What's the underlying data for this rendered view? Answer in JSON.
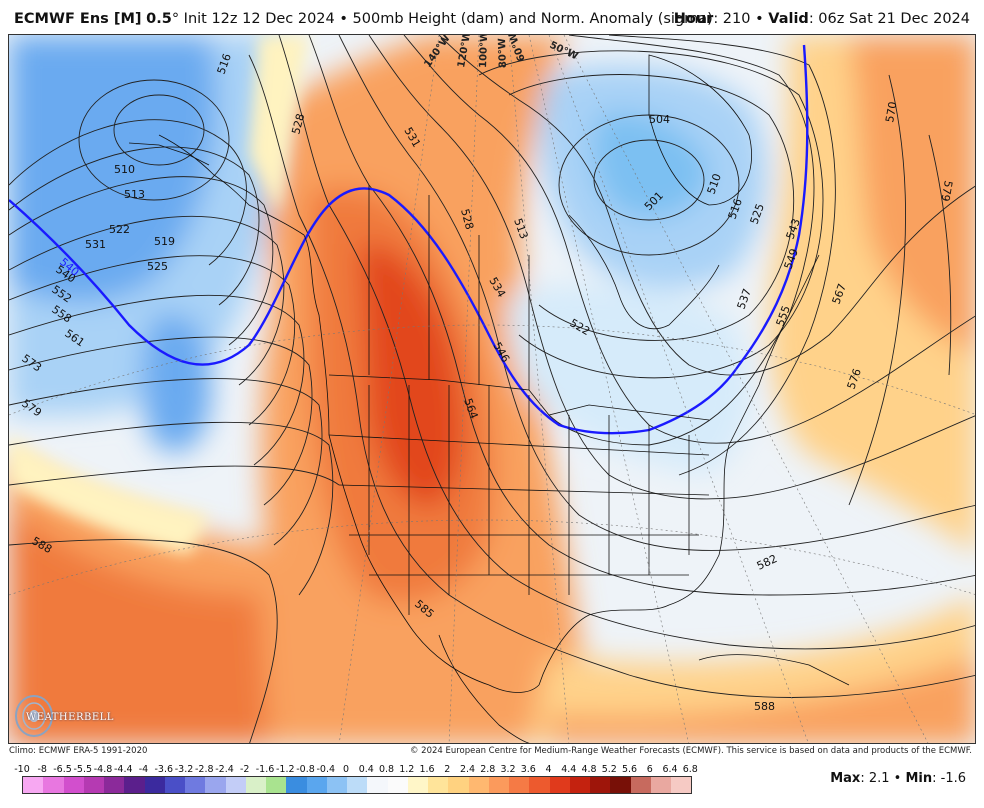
{
  "header": {
    "model": "ECMWF Ens [M]",
    "resolution": "0.5",
    "degree": "°",
    "init": "Init 12z 12 Dec 2024",
    "bullet": "•",
    "product": "500mb Height (dam) and Norm. Anomaly (sigma)",
    "hour_label": "Hour",
    "hour_value": ": 210",
    "valid_label": "Valid",
    "valid_value": ": 06z Sat 21 Dec 2024"
  },
  "credits": {
    "climo": "Climo: ECMWF ERA-5 1991-2020",
    "copyright": "© 2024 European Centre for Medium-Range Weather Forecasts (ECMWF). This service is based on data and products of the ECMWF."
  },
  "logo": {
    "text": "WEATHERBELL"
  },
  "colorbar": {
    "labels": [
      "-10",
      "-8",
      "-6.5",
      "-5.5",
      "-4.8",
      "-4.4",
      "-4",
      "-3.6",
      "-3.2",
      "-2.8",
      "-2.4",
      "-2",
      "-1.6",
      "-1.2",
      "-0.8",
      "-0.4",
      "0",
      "0.4",
      "0.8",
      "1.2",
      "1.6",
      "2",
      "2.4",
      "2.8",
      "3.2",
      "3.6",
      "4",
      "4.4",
      "4.8",
      "5.2",
      "5.6",
      "6",
      "6.4",
      "6.8"
    ],
    "colors": [
      "#f7a8f2",
      "#e877e0",
      "#d24fcd",
      "#b53ab2",
      "#8b2a9a",
      "#5b1f8c",
      "#3b2a9e",
      "#4a4fc7",
      "#6f7ae0",
      "#9aa6ee",
      "#c3cdf7",
      "#d9f0c8",
      "#a9e38f",
      "#3a8de0",
      "#5aa6ee",
      "#8cc2f4",
      "#bcdcf8",
      "#f4f7fb",
      "#fbfbfb",
      "#fff6c8",
      "#ffe49a",
      "#ffd280",
      "#ffb870",
      "#fb9a5c",
      "#f57a45",
      "#ed5a2e",
      "#e03a1c",
      "#c4220f",
      "#9e150a",
      "#781007",
      "#c76a5e",
      "#e9a8a0",
      "#f6cac4"
    ],
    "max_label": "Max",
    "max_value": ": 2.1",
    "min_label": "Min",
    "min_value": ": -1.6"
  },
  "map": {
    "contour_labels": [
      "516",
      "528",
      "531",
      "510",
      "513",
      "522",
      "519",
      "525",
      "531",
      "540",
      "552",
      "558",
      "561",
      "573",
      "579",
      "588",
      "504",
      "501",
      "510",
      "516",
      "525",
      "543",
      "549",
      "537",
      "555",
      "567",
      "576",
      "570",
      "579",
      "522",
      "534",
      "546",
      "564",
      "582",
      "585",
      "588",
      "513",
      "528"
    ],
    "longitude_labels": [
      "140°W",
      "120°W",
      "100°W",
      "80°W",
      "60°W",
      "50°W"
    ],
    "anomaly_contour_label": "540",
    "colors": {
      "cold_deep": "#6aaaf0",
      "cold": "#a9d2f6",
      "cold_light": "#d6ebfa",
      "neutral": "#eef3f8",
      "warm_light": "#fff3c0",
      "warm": "#ffd28a",
      "warm_mid": "#f9a15e",
      "warm_high": "#f07a3c",
      "warm_peak": "#e2471c"
    }
  }
}
